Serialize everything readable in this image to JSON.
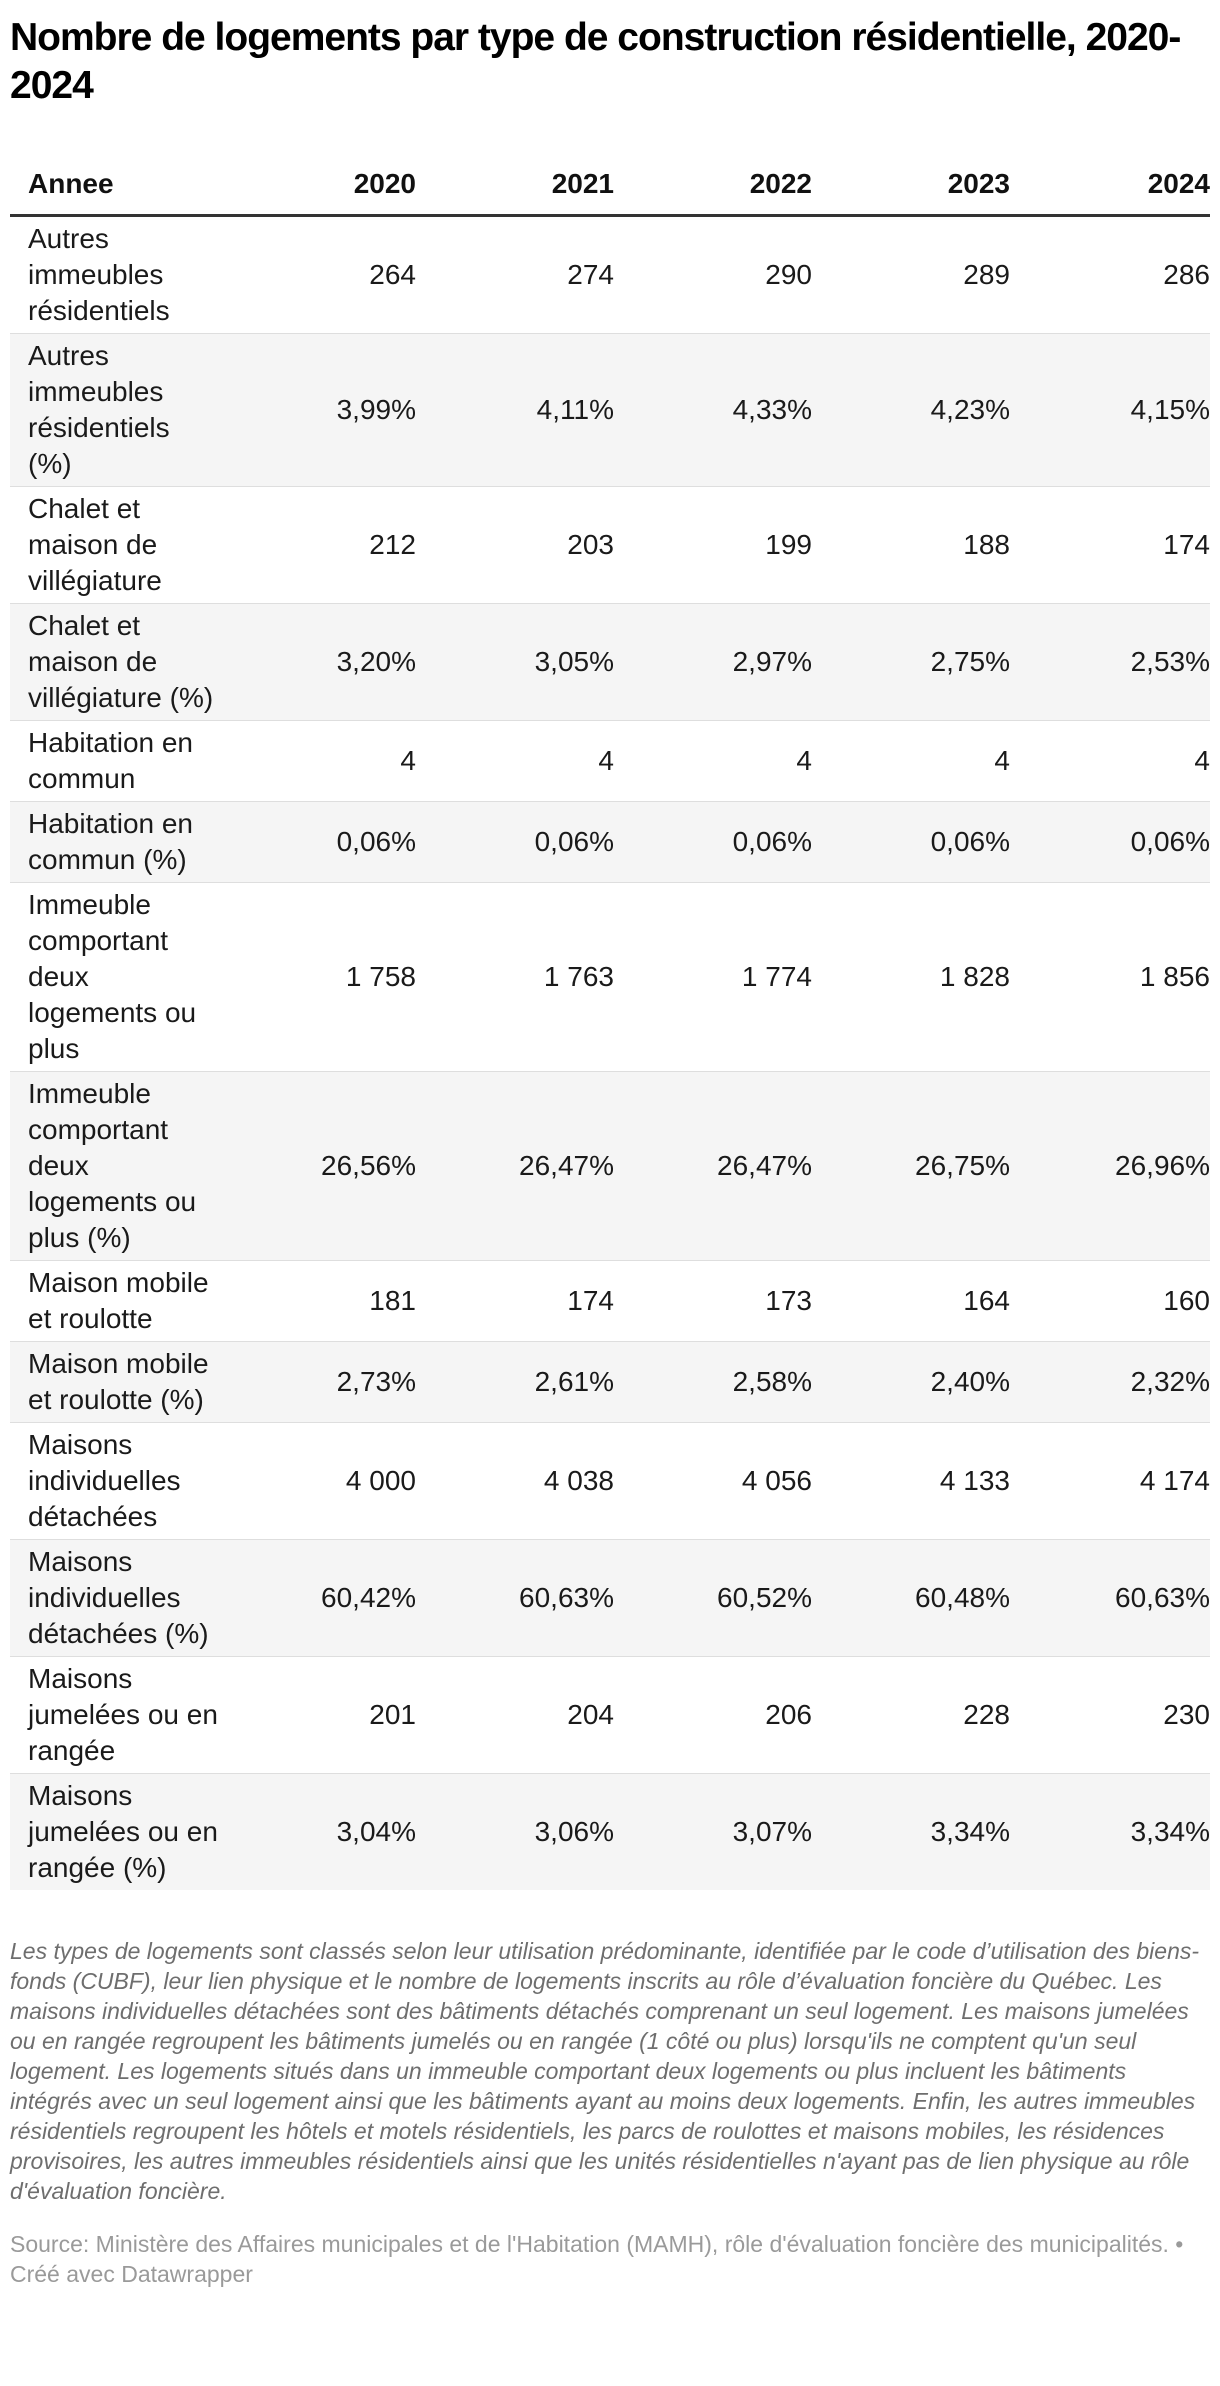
{
  "chart_data": {
    "type": "table",
    "title": "Nombre de logements par type de construction résidentielle, 2020-2024",
    "columns": [
      "Annee",
      "2020",
      "2021",
      "2022",
      "2023",
      "2024"
    ],
    "rows": [
      {
        "label": "Autres immeubles résidentiels",
        "values": [
          "264",
          "274",
          "290",
          "289",
          "286"
        ]
      },
      {
        "label": "Autres immeubles résidentiels (%)",
        "values": [
          "3,99%",
          "4,11%",
          "4,33%",
          "4,23%",
          "4,15%"
        ]
      },
      {
        "label": "Chalet et maison de villégiature",
        "values": [
          "212",
          "203",
          "199",
          "188",
          "174"
        ]
      },
      {
        "label": "Chalet et maison de villégiature (%)",
        "values": [
          "3,20%",
          "3,05%",
          "2,97%",
          "2,75%",
          "2,53%"
        ]
      },
      {
        "label": "Habitation en commun",
        "values": [
          "4",
          "4",
          "4",
          "4",
          "4"
        ]
      },
      {
        "label": "Habitation en commun (%)",
        "values": [
          "0,06%",
          "0,06%",
          "0,06%",
          "0,06%",
          "0,06%"
        ]
      },
      {
        "label": "Immeuble comportant deux logements ou plus",
        "values": [
          "1 758",
          "1 763",
          "1 774",
          "1 828",
          "1 856"
        ]
      },
      {
        "label": "Immeuble comportant deux logements ou plus (%)",
        "values": [
          "26,56%",
          "26,47%",
          "26,47%",
          "26,75%",
          "26,96%"
        ]
      },
      {
        "label": "Maison mobile et roulotte",
        "values": [
          "181",
          "174",
          "173",
          "164",
          "160"
        ]
      },
      {
        "label": "Maison mobile et roulotte (%)",
        "values": [
          "2,73%",
          "2,61%",
          "2,58%",
          "2,40%",
          "2,32%"
        ]
      },
      {
        "label": "Maisons individuelles détachées",
        "values": [
          "4 000",
          "4 038",
          "4 056",
          "4 133",
          "4 174"
        ]
      },
      {
        "label": "Maisons individuelles détachées (%)",
        "values": [
          "60,42%",
          "60,63%",
          "60,52%",
          "60,48%",
          "60,63%"
        ]
      },
      {
        "label": "Maisons jumelées ou en rangée",
        "values": [
          "201",
          "204",
          "206",
          "228",
          "230"
        ]
      },
      {
        "label": "Maisons jumelées ou en rangée (%)",
        "values": [
          "3,04%",
          "3,06%",
          "3,07%",
          "3,34%",
          "3,34%"
        ]
      }
    ],
    "notes": "Les types de logements sont classés selon leur utilisation prédominante, identifiée par le code d’utilisation des biens-fonds (CUBF), leur lien physique et le nombre de logements inscrits au rôle d’évaluation foncière du Québec. Les maisons individuelles détachées sont des bâtiments détachés comprenant un seul logement. Les maisons jumelées ou en rangée regroupent les bâtiments jumelés ou en rangée (1 côté ou plus) lorsqu'ils ne comptent qu'un seul logement. Les logements situés dans un immeuble comportant deux logements ou plus incluent les bâtiments intégrés avec un seul logement ainsi que les bâtiments ayant au moins deux logements. Enfin, les autres immeubles résidentiels regroupent les hôtels et motels résidentiels, les parcs de roulottes et maisons mobiles, les résidences provisoires, les autres immeubles résidentiels ainsi que les unités résidentielles n'ayant pas de lien physique au rôle d'évaluation foncière.",
    "source": "Source: Ministère des Affaires municipales et de l'Habitation (MAMH), rôle d'évaluation foncière des municipalités. • Créé avec Datawrapper",
    "layout": {
      "striped_rows": true,
      "value_alignment": "right",
      "label_column_alignment": "left",
      "grid": "horizontal-only"
    }
  },
  "colors": {
    "background": "#ffffff",
    "title_text": "#000000",
    "cell_text": "#1a1a1a",
    "header_rule": "#333333",
    "row_separator": "#dedede",
    "stripe": "#f5f5f5",
    "notes_text": "#6e6e6e",
    "source_text": "#9a9a9a"
  }
}
